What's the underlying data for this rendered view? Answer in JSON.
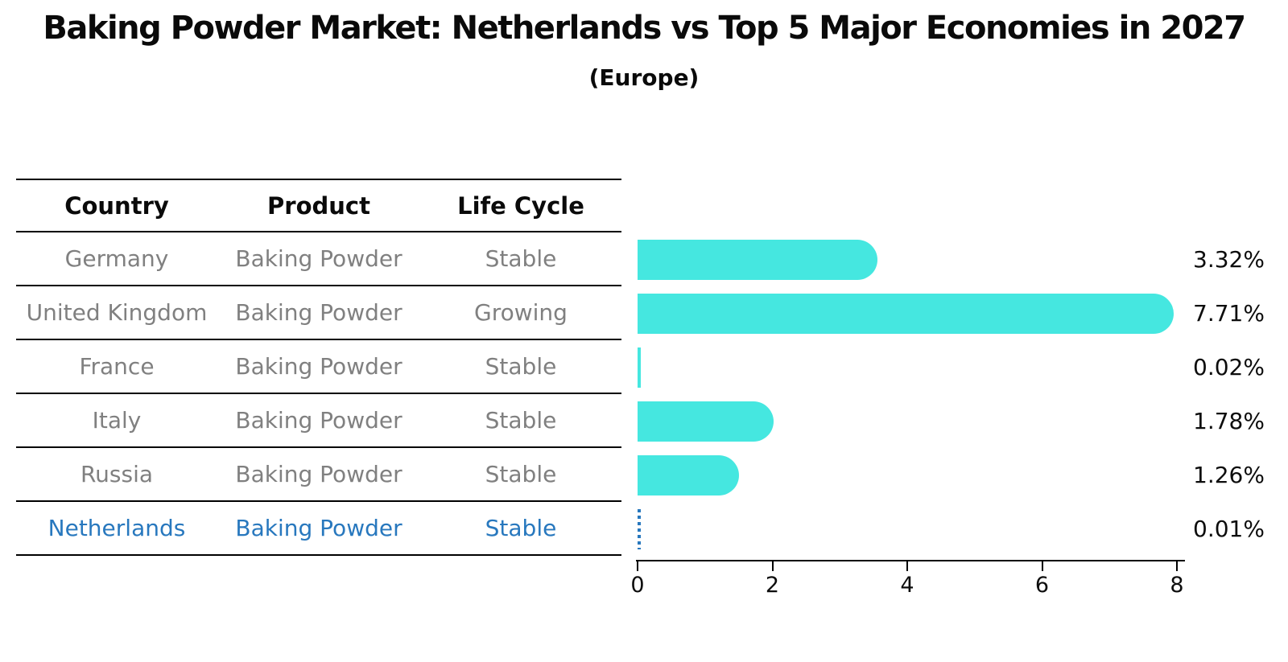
{
  "title": "Baking Powder Market: Netherlands vs Top 5 Major Economies in 2027",
  "subtitle": "(Europe)",
  "table": {
    "headers": [
      "Country",
      "Product",
      "Life Cycle"
    ],
    "rows": [
      {
        "country": "Germany",
        "product": "Baking Powder",
        "life_cycle": "Stable",
        "highlight": false
      },
      {
        "country": "United Kingdom",
        "product": "Baking Powder",
        "life_cycle": "Growing",
        "highlight": false
      },
      {
        "country": "France",
        "product": "Baking Powder",
        "life_cycle": "Stable",
        "highlight": false
      },
      {
        "country": "Italy",
        "product": "Baking Powder",
        "life_cycle": "Stable",
        "highlight": false
      },
      {
        "country": "Russia",
        "product": "Baking Powder",
        "life_cycle": "Stable",
        "highlight": false
      },
      {
        "country": "Netherlands",
        "product": "Baking Powder",
        "life_cycle": "Stable",
        "highlight": true
      }
    ]
  },
  "chart_data": {
    "type": "bar",
    "orientation": "horizontal",
    "title": "Baking Powder Market: Netherlands vs Top 5 Major Economies in 2027 (Europe)",
    "categories": [
      "Germany",
      "United Kingdom",
      "France",
      "Italy",
      "Russia",
      "Netherlands"
    ],
    "values": [
      3.32,
      7.71,
      0.02,
      1.78,
      1.26,
      0.01
    ],
    "value_labels": [
      "3.32%",
      "7.71%",
      "0.02%",
      "1.78%",
      "1.26%",
      "0.01%"
    ],
    "xlabel": "",
    "ylabel": "",
    "x_ticks": [
      0,
      2,
      4,
      6,
      8
    ],
    "xlim": [
      0,
      8.1
    ],
    "grid": false,
    "legend": false,
    "bar_color": "#45e7e0",
    "highlight_color": "#2878be",
    "highlight_index": 5,
    "bar_style": "rounded-right-end",
    "highlight_bar_style": "dashed-outline"
  }
}
